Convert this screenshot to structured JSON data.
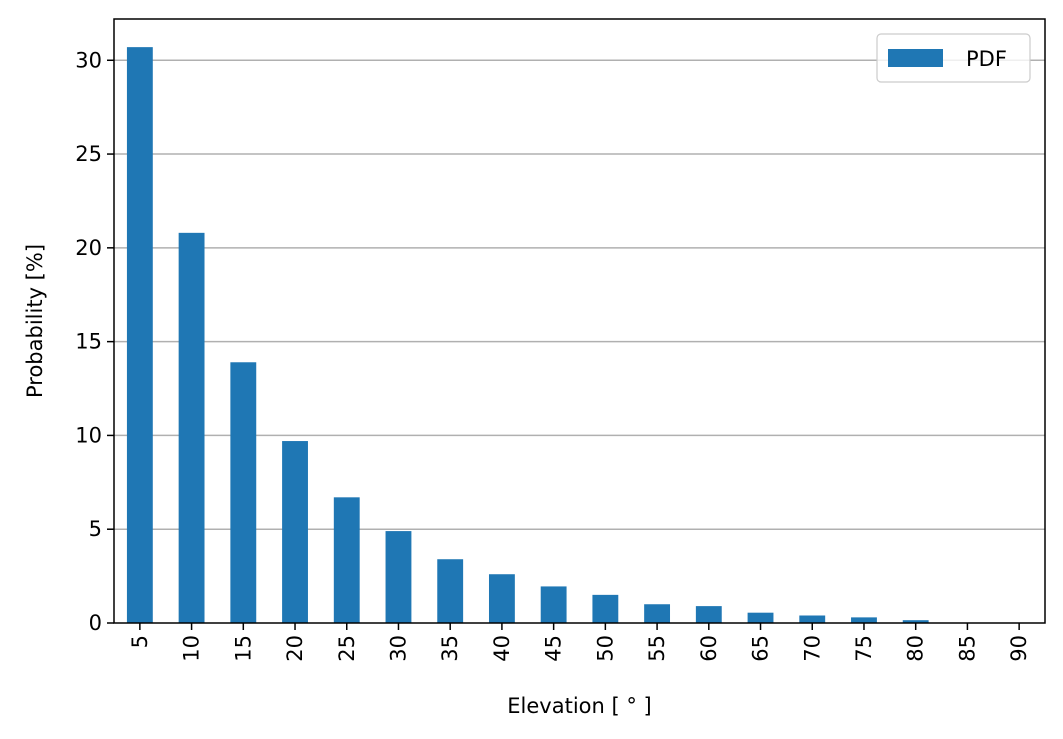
{
  "chart_data": {
    "type": "bar",
    "categories": [
      "5",
      "10",
      "15",
      "20",
      "25",
      "30",
      "35",
      "40",
      "45",
      "50",
      "55",
      "60",
      "65",
      "70",
      "75",
      "80",
      "85",
      "90"
    ],
    "series": [
      {
        "name": "PDF",
        "color": "#1f77b4",
        "values": [
          30.7,
          20.8,
          13.9,
          9.7,
          6.7,
          4.9,
          3.4,
          2.6,
          1.95,
          1.5,
          1.0,
          0.9,
          0.55,
          0.4,
          0.3,
          0.15,
          0.02,
          0.01
        ]
      }
    ],
    "xlabel": "Elevation [$^\\circ$]",
    "xlabel_display": "Elevation [ ° ]",
    "ylabel": "Probability [%]",
    "ylim": [
      0,
      32.2
    ],
    "yticks": [
      0,
      5,
      10,
      15,
      20,
      25,
      30
    ],
    "grid": "y",
    "legend_position": "top-right",
    "x_tick_rotation": 90
  }
}
